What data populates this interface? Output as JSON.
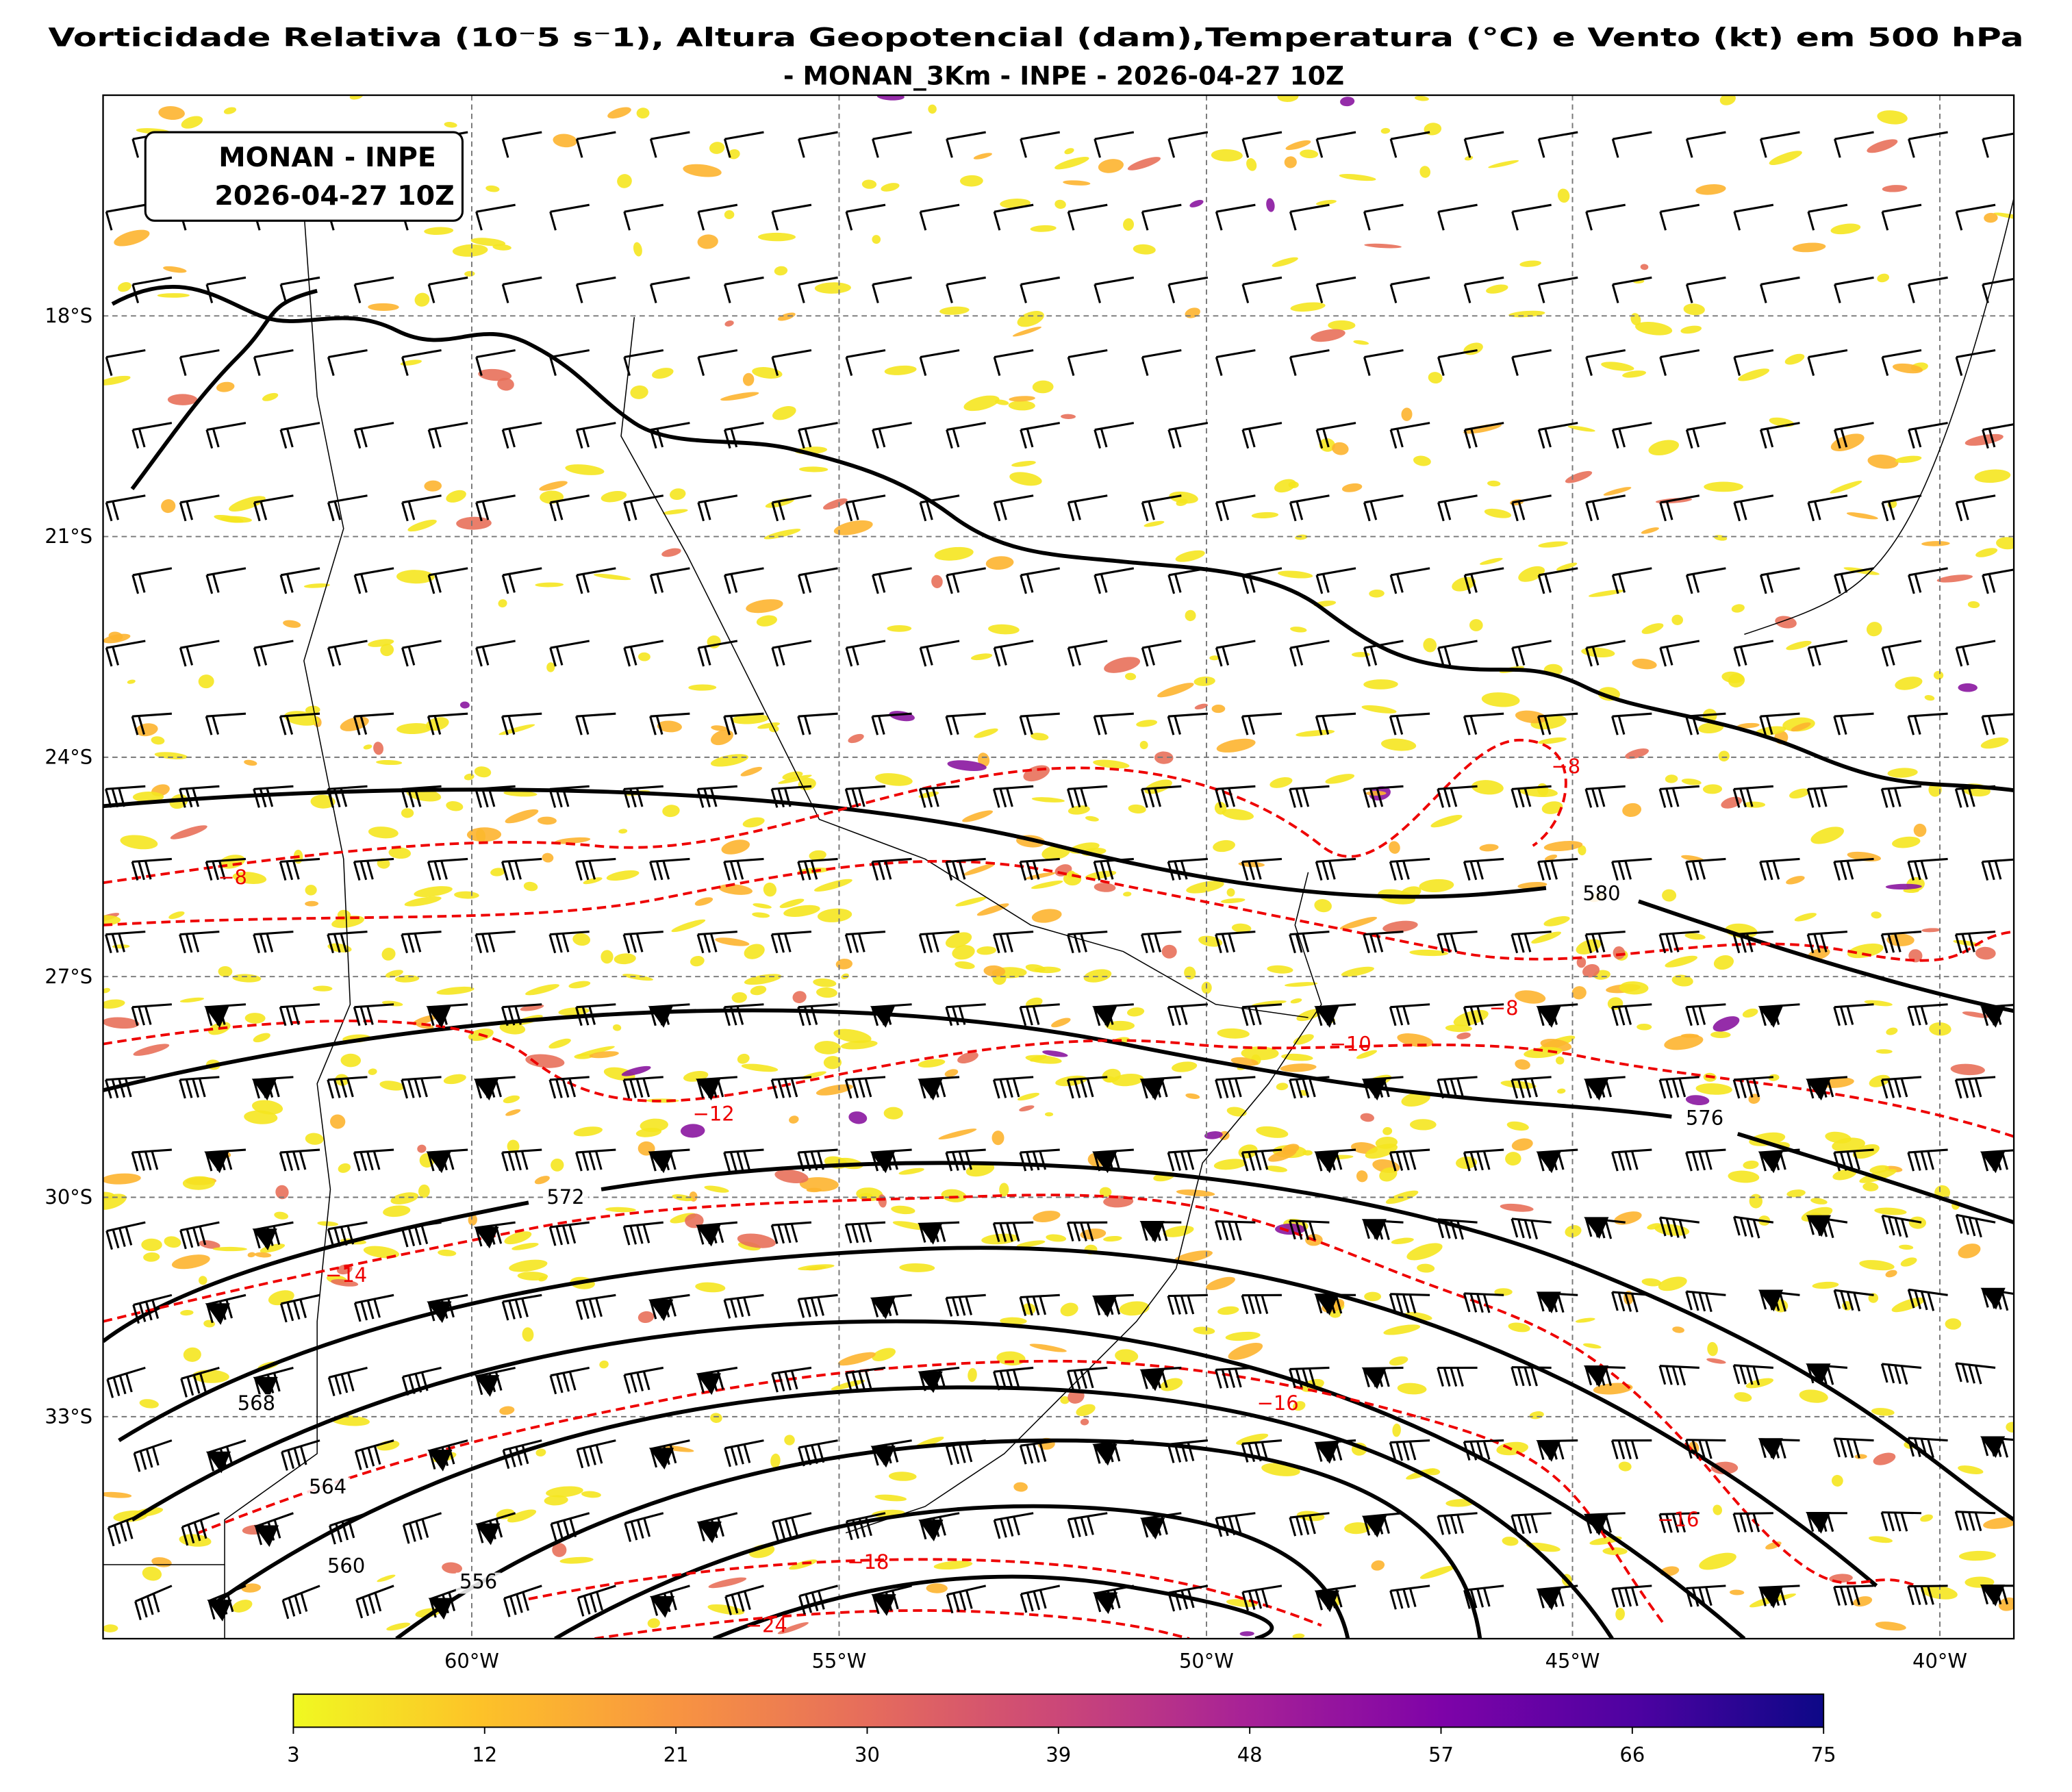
{
  "title": [
    "Vorticidade Relativa (10⁻5 s⁻1), Altura Geopotencial (dam),Temperatura (°C) e Vento (kt) em 500 hPa",
    "- MONAN_3Km - INPE - 2026-04-27 10Z"
  ],
  "info_box": [
    "MONAN - INPE",
    "2026-04-27 10Z"
  ],
  "map": {
    "lat_labels": [
      "18°S",
      "21°S",
      "24°S",
      "27°S",
      "30°S",
      "33°S"
    ],
    "lon_labels": [
      "60°W",
      "55°W",
      "50°W",
      "45°W",
      "40°W"
    ],
    "height_contour_labels": [
      "580",
      "576",
      "572",
      "568",
      "564",
      "560",
      "556"
    ],
    "temperature_contour_labels": [
      "−8",
      "−8",
      "−8",
      "−10",
      "−12",
      "−14",
      "−16",
      "−16",
      "−18",
      "−24"
    ]
  },
  "colorbar": {
    "tick_labels": [
      "3",
      "12",
      "21",
      "30",
      "39",
      "48",
      "57",
      "66",
      "75"
    ]
  }
}
